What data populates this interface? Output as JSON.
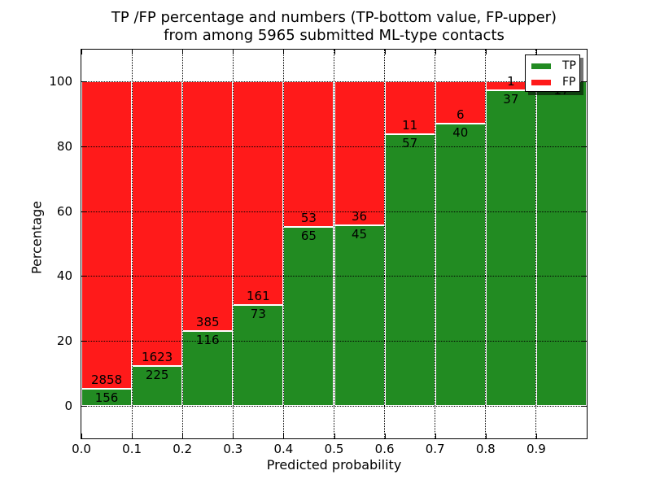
{
  "chart_data": {
    "type": "bar",
    "variant": "stacked-percentage-histogram",
    "title_lines": [
      "TP /FP percentage and numbers (TP-bottom value, FP-upper)",
      "from among 5965 submitted ML-type contacts"
    ],
    "xlabel": "Predicted probability",
    "ylabel": "Percentage",
    "total_contacts": 5965,
    "bin_edges": [
      0.0,
      0.1,
      0.2,
      0.3,
      0.4,
      0.5,
      0.6,
      0.7,
      0.8,
      0.9,
      1.0
    ],
    "xtick_labels": [
      "0.0",
      "0.1",
      "0.2",
      "0.3",
      "0.4",
      "0.5",
      "0.6",
      "0.7",
      "0.8",
      "0.9"
    ],
    "ytick_values": [
      0,
      20,
      40,
      60,
      80,
      100
    ],
    "ytick_labels": [
      "0",
      "20",
      "40",
      "60",
      "80",
      "100"
    ],
    "xlim": [
      0.0,
      1.0
    ],
    "ylim": [
      -10.3,
      110.0
    ],
    "grid": {
      "visible": true,
      "style": "dotted",
      "color": "#000000"
    },
    "bar_edge_color": "#ffffff",
    "series": [
      {
        "name": "TP",
        "color": "#228B22",
        "counts": [
          156,
          225,
          116,
          73,
          65,
          45,
          57,
          40,
          37,
          17
        ]
      },
      {
        "name": "FP",
        "color": "#FF1A1A",
        "counts": [
          2858,
          1623,
          385,
          161,
          53,
          36,
          11,
          6,
          1,
          0
        ]
      }
    ],
    "bar_value_labels": "counts drawn at TP/FP boundary: TP count below boundary, FP count above; FP label omitted when count is 0",
    "legend": {
      "position": "upper right",
      "entries": [
        {
          "label": "TP",
          "color": "#228B22"
        },
        {
          "label": "FP",
          "color": "#FF1A1A"
        }
      ]
    }
  }
}
